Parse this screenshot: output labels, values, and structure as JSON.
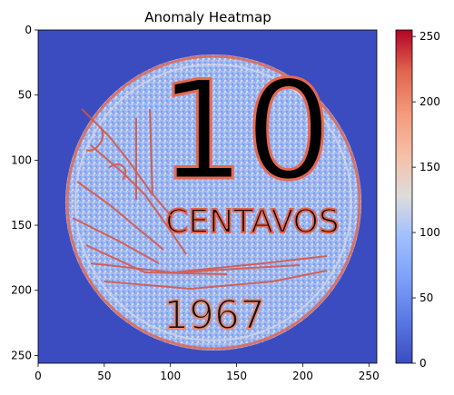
{
  "chart_data": {
    "type": "heatmap",
    "title": "Anomaly Heatmap",
    "xlabel": "",
    "ylabel": "",
    "image_size": [
      256,
      256
    ],
    "x_range": [
      0,
      256
    ],
    "y_range": [
      256,
      0
    ],
    "x_ticks": [
      0,
      50,
      100,
      150,
      200,
      250
    ],
    "y_ticks": [
      0,
      50,
      100,
      150,
      200,
      250
    ],
    "colormap": "coolwarm",
    "colorbar": {
      "range": [
        0,
        255
      ],
      "ticks": [
        0,
        50,
        100,
        150,
        200,
        250
      ]
    },
    "background_value": 0,
    "content": {
      "description_text": [
        "10",
        "CENTAVOS",
        "1967"
      ],
      "coin_center": [
        133,
        133
      ],
      "coin_radius": 112
    },
    "colors": {
      "low": "#3b4cc0",
      "mid": "#dddddd",
      "high": "#b40426"
    }
  }
}
